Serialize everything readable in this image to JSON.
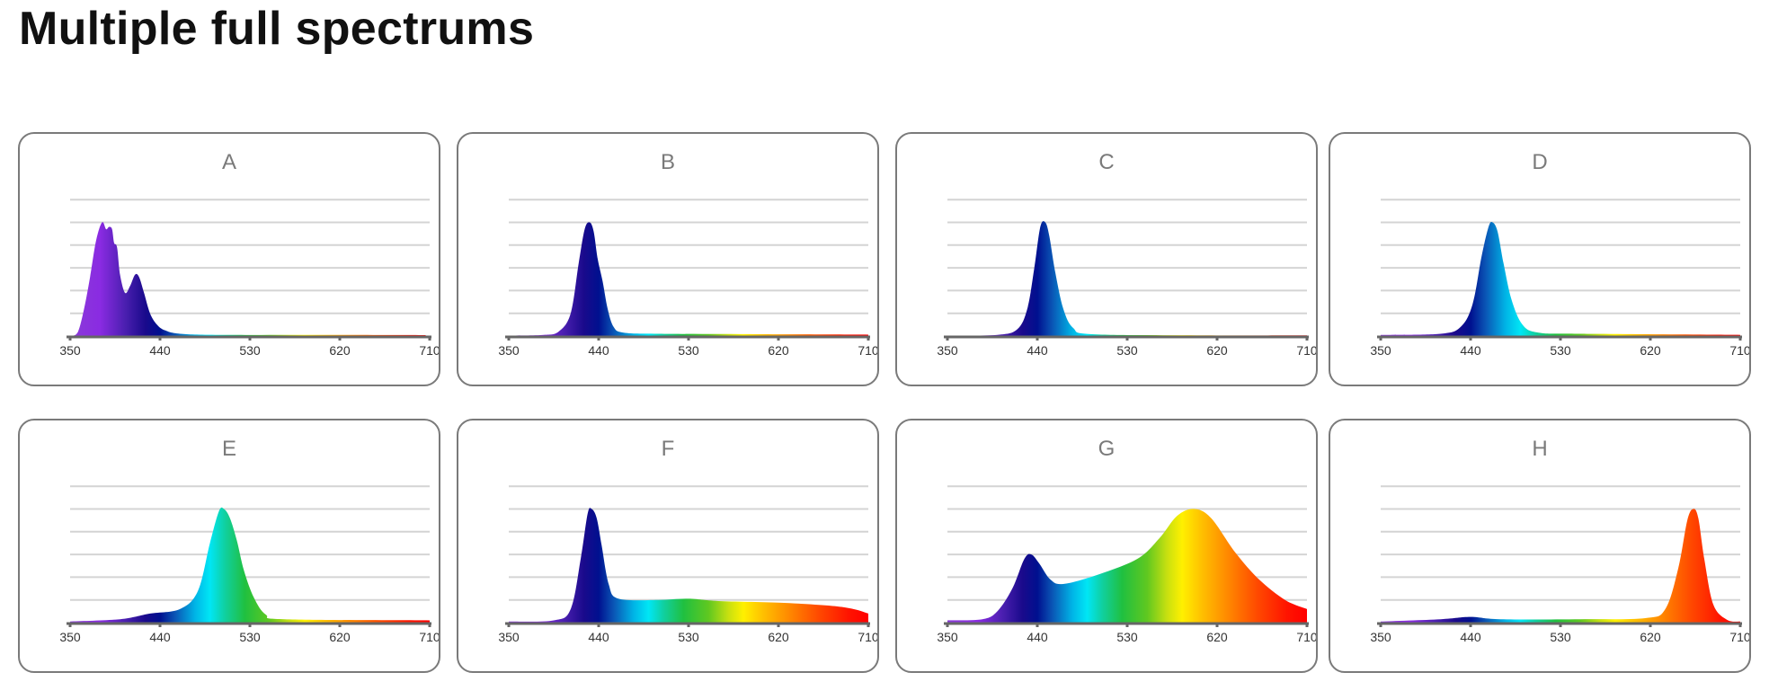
{
  "page": {
    "title": "Multiple full spectrums"
  },
  "chart_data": {
    "type": "area",
    "x_ticks": [
      350,
      440,
      530,
      620,
      710
    ],
    "xlim": [
      350,
      710
    ],
    "ylim": [
      0,
      6
    ],
    "grid": true,
    "y_units": "relative intensity (gridline units)",
    "colors": {
      "border": "#7a7a7a",
      "grid": "#d4d4d4",
      "axis": "#666666",
      "label": "#7a7a7a"
    },
    "panels": [
      {
        "name": "A",
        "points": [
          [
            352,
            0
          ],
          [
            358,
            0.2
          ],
          [
            364,
            1.2
          ],
          [
            370,
            2.6
          ],
          [
            376,
            4.2
          ],
          [
            382,
            5.0
          ],
          [
            386,
            4.7
          ],
          [
            389,
            4.8
          ],
          [
            392,
            4.7
          ],
          [
            394,
            4.1
          ],
          [
            397,
            3.9
          ],
          [
            400,
            2.7
          ],
          [
            405,
            1.9
          ],
          [
            410,
            2.2
          ],
          [
            415,
            2.7
          ],
          [
            419,
            2.6
          ],
          [
            424,
            1.9
          ],
          [
            430,
            1.0
          ],
          [
            437,
            0.5
          ],
          [
            445,
            0.25
          ],
          [
            460,
            0.1
          ],
          [
            500,
            0.05
          ],
          [
            600,
            0.05
          ],
          [
            706,
            0.04
          ]
        ]
      },
      {
        "name": "B",
        "points": [
          [
            350,
            0.02
          ],
          [
            385,
            0.05
          ],
          [
            400,
            0.2
          ],
          [
            412,
            1.0
          ],
          [
            420,
            3.2
          ],
          [
            426,
            4.7
          ],
          [
            431,
            5.0
          ],
          [
            435,
            4.6
          ],
          [
            439,
            3.4
          ],
          [
            444,
            2.4
          ],
          [
            449,
            1.2
          ],
          [
            455,
            0.4
          ],
          [
            465,
            0.15
          ],
          [
            500,
            0.1
          ],
          [
            600,
            0.08
          ],
          [
            710,
            0.06
          ]
        ]
      },
      {
        "name": "C",
        "points": [
          [
            350,
            0.02
          ],
          [
            400,
            0.05
          ],
          [
            420,
            0.3
          ],
          [
            430,
            1.2
          ],
          [
            437,
            3.0
          ],
          [
            443,
            4.8
          ],
          [
            448,
            5.0
          ],
          [
            452,
            4.4
          ],
          [
            458,
            2.8
          ],
          [
            466,
            1.2
          ],
          [
            476,
            0.35
          ],
          [
            495,
            0.08
          ],
          [
            600,
            0.03
          ],
          [
            710,
            0.03
          ]
        ]
      },
      {
        "name": "D",
        "points": [
          [
            350,
            0.05
          ],
          [
            410,
            0.1
          ],
          [
            430,
            0.4
          ],
          [
            442,
            1.4
          ],
          [
            451,
            3.5
          ],
          [
            458,
            4.8
          ],
          [
            462,
            5.0
          ],
          [
            467,
            4.6
          ],
          [
            473,
            3.2
          ],
          [
            481,
            1.6
          ],
          [
            492,
            0.5
          ],
          [
            508,
            0.15
          ],
          [
            550,
            0.1
          ],
          [
            710,
            0.05
          ]
        ]
      },
      {
        "name": "E",
        "points": [
          [
            350,
            0.05
          ],
          [
            400,
            0.15
          ],
          [
            430,
            0.4
          ],
          [
            460,
            0.6
          ],
          [
            478,
            1.4
          ],
          [
            490,
            3.5
          ],
          [
            499,
            4.9
          ],
          [
            504,
            5.0
          ],
          [
            510,
            4.6
          ],
          [
            517,
            3.6
          ],
          [
            524,
            2.3
          ],
          [
            534,
            1.1
          ],
          [
            546,
            0.35
          ],
          [
            565,
            0.15
          ],
          [
            710,
            0.1
          ]
        ]
      },
      {
        "name": "F",
        "points": [
          [
            350,
            0.05
          ],
          [
            395,
            0.1
          ],
          [
            412,
            0.6
          ],
          [
            422,
            2.8
          ],
          [
            429,
            4.8
          ],
          [
            433,
            5.0
          ],
          [
            438,
            4.6
          ],
          [
            443,
            3.4
          ],
          [
            450,
            1.7
          ],
          [
            460,
            1.05
          ],
          [
            500,
            1.0
          ],
          [
            530,
            1.05
          ],
          [
            560,
            0.95
          ],
          [
            620,
            0.88
          ],
          [
            670,
            0.75
          ],
          [
            695,
            0.6
          ],
          [
            710,
            0.4
          ]
        ]
      },
      {
        "name": "G",
        "points": [
          [
            350,
            0.1
          ],
          [
            385,
            0.15
          ],
          [
            400,
            0.5
          ],
          [
            415,
            1.5
          ],
          [
            427,
            2.8
          ],
          [
            434,
            3.0
          ],
          [
            442,
            2.6
          ],
          [
            453,
            1.9
          ],
          [
            466,
            1.7
          ],
          [
            500,
            2.1
          ],
          [
            540,
            2.8
          ],
          [
            562,
            3.7
          ],
          [
            580,
            4.7
          ],
          [
            597,
            5.0
          ],
          [
            614,
            4.6
          ],
          [
            638,
            3.1
          ],
          [
            662,
            1.9
          ],
          [
            688,
            1.0
          ],
          [
            710,
            0.6
          ]
        ]
      },
      {
        "name": "H",
        "points": [
          [
            350,
            0.05
          ],
          [
            410,
            0.15
          ],
          [
            440,
            0.25
          ],
          [
            470,
            0.15
          ],
          [
            550,
            0.15
          ],
          [
            615,
            0.2
          ],
          [
            635,
            0.6
          ],
          [
            648,
            2.4
          ],
          [
            657,
            4.5
          ],
          [
            663,
            5.0
          ],
          [
            668,
            4.6
          ],
          [
            674,
            2.8
          ],
          [
            683,
            0.8
          ],
          [
            697,
            0.12
          ],
          [
            710,
            0.05
          ]
        ]
      }
    ]
  }
}
